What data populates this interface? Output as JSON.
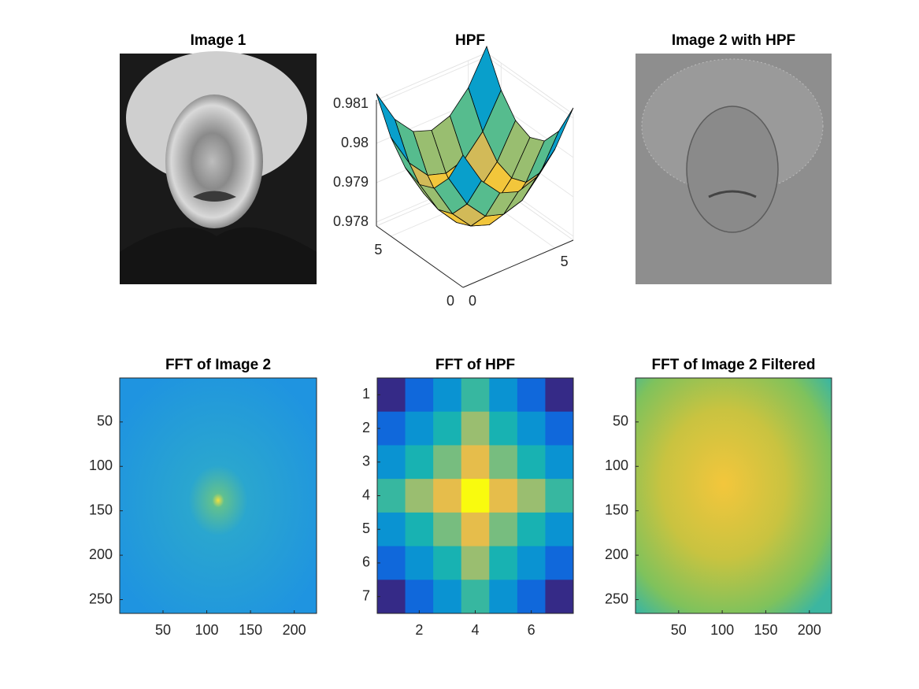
{
  "chart_data": [
    {
      "type": "image",
      "title": "Image 1"
    },
    {
      "type": "surface",
      "title": "HPF",
      "x": [
        0,
        1,
        2,
        3,
        4,
        5,
        6
      ],
      "y": [
        0,
        1,
        2,
        3,
        4,
        5,
        6
      ],
      "xlim": [
        0,
        6
      ],
      "ylim": [
        0,
        6
      ],
      "zlim": [
        0.9779,
        0.9811
      ],
      "xticks": [
        0,
        5
      ],
      "yticks": [
        0,
        5
      ],
      "zticks": [
        0.978,
        0.979,
        0.98,
        0.981
      ],
      "z": [
        [
          0.98126,
          0.98041,
          0.9799,
          0.97973,
          0.9799,
          0.98041,
          0.98126
        ],
        [
          0.98041,
          0.97956,
          0.97905,
          0.9789,
          0.97905,
          0.97956,
          0.98041
        ],
        [
          0.9799,
          0.97905,
          0.97854,
          0.97837,
          0.97854,
          0.97905,
          0.9799
        ],
        [
          0.97973,
          0.9789,
          0.97837,
          0.9782,
          0.97837,
          0.9789,
          0.97973
        ],
        [
          0.9799,
          0.97905,
          0.97854,
          0.97837,
          0.97854,
          0.97905,
          0.9799
        ],
        [
          0.98041,
          0.97956,
          0.97905,
          0.9789,
          0.97905,
          0.97956,
          0.98041
        ],
        [
          0.98126,
          0.98041,
          0.9799,
          0.97973,
          0.9799,
          0.98041,
          0.98126
        ]
      ]
    },
    {
      "type": "image",
      "title": "Image 2 with HPF"
    },
    {
      "type": "image",
      "title": "FFT of Image 2",
      "xlim": [
        0.5,
        225.5
      ],
      "ylim": [
        0.5,
        265.5
      ],
      "xticks": [
        50,
        100,
        150,
        200
      ],
      "yticks": [
        50,
        100,
        150,
        200,
        250
      ]
    },
    {
      "type": "heatmap",
      "title": "FFT of HPF",
      "xlim": [
        0.5,
        7.5
      ],
      "ylim": [
        0.5,
        7.5
      ],
      "xticks": [
        2,
        4,
        6
      ],
      "yticks": [
        1,
        2,
        3,
        4,
        5,
        6,
        7
      ],
      "values": [
        [
          0,
          0.15,
          0.3,
          0.5,
          0.3,
          0.15,
          0
        ],
        [
          0.15,
          0.3,
          0.45,
          0.65,
          0.45,
          0.3,
          0.15
        ],
        [
          0.3,
          0.45,
          0.6,
          0.8,
          0.6,
          0.45,
          0.3
        ],
        [
          0.5,
          0.65,
          0.8,
          1,
          0.8,
          0.65,
          0.5
        ],
        [
          0.3,
          0.45,
          0.6,
          0.8,
          0.6,
          0.45,
          0.3
        ],
        [
          0.15,
          0.3,
          0.45,
          0.65,
          0.45,
          0.3,
          0.15
        ],
        [
          0,
          0.15,
          0.3,
          0.5,
          0.3,
          0.15,
          0
        ]
      ]
    },
    {
      "type": "image",
      "title": "FFT of Image 2 Filtered",
      "xlim": [
        0.5,
        225.5
      ],
      "ylim": [
        0.5,
        265.5
      ],
      "xticks": [
        50,
        100,
        150,
        200
      ],
      "yticks": [
        50,
        100,
        150,
        200,
        250
      ]
    }
  ]
}
